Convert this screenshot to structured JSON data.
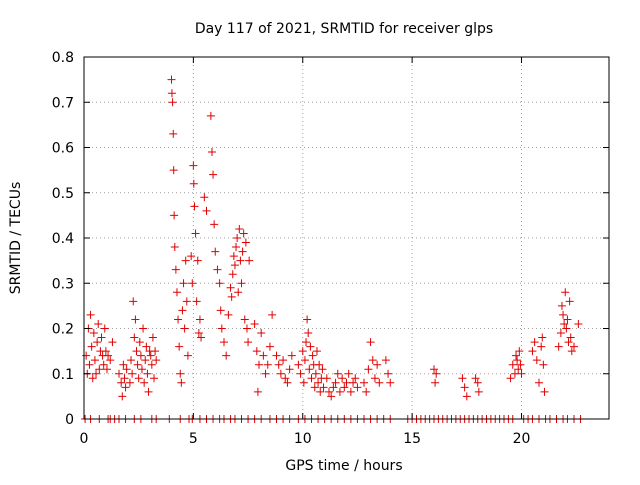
{
  "chart_data": {
    "type": "scatter",
    "title": "Day 117 of 2021, SRMTID for receiver glps",
    "xlabel": "GPS time / hours",
    "ylabel": "SRMTID / TECUs",
    "xlim": [
      0,
      24
    ],
    "ylim": [
      0,
      0.8
    ],
    "xticks": [
      0,
      5,
      10,
      15,
      20
    ],
    "xtick_labels": [
      "0",
      "5",
      "10",
      "15",
      "20"
    ],
    "yticks": [
      0,
      0.1,
      0.2,
      0.3,
      0.4,
      0.5,
      0.6,
      0.7,
      0.8
    ],
    "ytick_labels": [
      "0",
      "0.1",
      "0.2",
      "0.3",
      "0.4",
      "0.5",
      "0.6",
      "0.7",
      "0.8"
    ],
    "grid": true,
    "marker": "+",
    "color": "#e00000",
    "series": [
      {
        "name": "SRMTID",
        "points": [
          [
            0.1,
            0.14
          ],
          [
            0.15,
            0.1
          ],
          [
            0.2,
            0.2
          ],
          [
            0.25,
            0.12
          ],
          [
            0.3,
            0.23
          ],
          [
            0.35,
            0.16
          ],
          [
            0.4,
            0.09
          ],
          [
            0.45,
            0.19
          ],
          [
            0.5,
            0.13
          ],
          [
            0.55,
            0.1
          ],
          [
            0.6,
            0.17
          ],
          [
            0.65,
            0.21
          ],
          [
            0.7,
            0.11
          ],
          [
            0.75,
            0.15
          ],
          [
            0.8,
            0.18
          ],
          [
            0.85,
            0.14
          ],
          [
            0.9,
            0.12
          ],
          [
            0.95,
            0.2
          ],
          [
            1.0,
            0.15
          ],
          [
            1.05,
            0.11
          ],
          [
            1.1,
            0.14
          ],
          [
            1.2,
            0.13
          ],
          [
            1.3,
            0.17
          ],
          [
            1.6,
            0.1
          ],
          [
            1.7,
            0.08
          ],
          [
            1.75,
            0.05
          ],
          [
            1.8,
            0.12
          ],
          [
            1.85,
            0.09
          ],
          [
            1.9,
            0.07
          ],
          [
            1.95,
            0.11
          ],
          [
            2.1,
            0.08
          ],
          [
            2.15,
            0.13
          ],
          [
            2.2,
            0.1
          ],
          [
            2.25,
            0.26
          ],
          [
            2.3,
            0.18
          ],
          [
            2.35,
            0.22
          ],
          [
            2.4,
            0.15
          ],
          [
            2.45,
            0.12
          ],
          [
            2.5,
            0.09
          ],
          [
            2.55,
            0.17
          ],
          [
            2.6,
            0.14
          ],
          [
            2.65,
            0.11
          ],
          [
            2.7,
            0.2
          ],
          [
            2.75,
            0.08
          ],
          [
            2.8,
            0.13
          ],
          [
            2.85,
            0.16
          ],
          [
            2.9,
            0.1
          ],
          [
            2.95,
            0.06
          ],
          [
            3.0,
            0.15
          ],
          [
            3.05,
            0.14
          ],
          [
            3.1,
            0.12
          ],
          [
            3.15,
            0.18
          ],
          [
            3.2,
            0.09
          ],
          [
            3.25,
            0.15
          ],
          [
            3.3,
            0.13
          ],
          [
            4.0,
            0.75
          ],
          [
            4.02,
            0.72
          ],
          [
            4.05,
            0.7
          ],
          [
            4.08,
            0.63
          ],
          [
            4.1,
            0.55
          ],
          [
            4.12,
            0.45
          ],
          [
            4.15,
            0.38
          ],
          [
            4.2,
            0.33
          ],
          [
            4.25,
            0.28
          ],
          [
            4.3,
            0.22
          ],
          [
            4.35,
            0.16
          ],
          [
            4.4,
            0.1
          ],
          [
            4.45,
            0.08
          ],
          [
            4.5,
            0.24
          ],
          [
            4.55,
            0.3
          ],
          [
            4.6,
            0.2
          ],
          [
            4.65,
            0.35
          ],
          [
            4.7,
            0.26
          ],
          [
            4.75,
            0.14
          ],
          [
            4.9,
            0.36
          ],
          [
            4.95,
            0.3
          ],
          [
            5.0,
            0.56
          ],
          [
            5.02,
            0.52
          ],
          [
            5.05,
            0.47
          ],
          [
            5.1,
            0.41
          ],
          [
            5.15,
            0.26
          ],
          [
            5.2,
            0.35
          ],
          [
            5.25,
            0.19
          ],
          [
            5.3,
            0.22
          ],
          [
            5.35,
            0.18
          ],
          [
            5.5,
            0.49
          ],
          [
            5.6,
            0.46
          ],
          [
            5.8,
            0.67
          ],
          [
            5.85,
            0.59
          ],
          [
            5.9,
            0.54
          ],
          [
            5.95,
            0.43
          ],
          [
            6.0,
            0.37
          ],
          [
            6.1,
            0.33
          ],
          [
            6.2,
            0.3
          ],
          [
            6.25,
            0.24
          ],
          [
            6.3,
            0.2
          ],
          [
            6.4,
            0.17
          ],
          [
            6.5,
            0.14
          ],
          [
            6.6,
            0.23
          ],
          [
            6.7,
            0.29
          ],
          [
            6.75,
            0.27
          ],
          [
            6.8,
            0.32
          ],
          [
            6.85,
            0.36
          ],
          [
            6.9,
            0.34
          ],
          [
            6.95,
            0.38
          ],
          [
            7.0,
            0.4
          ],
          [
            7.05,
            0.28
          ],
          [
            7.1,
            0.42
          ],
          [
            7.15,
            0.35
          ],
          [
            7.2,
            0.3
          ],
          [
            7.25,
            0.37
          ],
          [
            7.3,
            0.41
          ],
          [
            7.35,
            0.22
          ],
          [
            7.4,
            0.39
          ],
          [
            7.45,
            0.2
          ],
          [
            7.5,
            0.17
          ],
          [
            7.55,
            0.35
          ],
          [
            7.8,
            0.21
          ],
          [
            7.9,
            0.15
          ],
          [
            7.95,
            0.06
          ],
          [
            8.0,
            0.12
          ],
          [
            8.1,
            0.19
          ],
          [
            8.2,
            0.14
          ],
          [
            8.3,
            0.1
          ],
          [
            8.4,
            0.12
          ],
          [
            8.5,
            0.16
          ],
          [
            8.6,
            0.23
          ],
          [
            8.8,
            0.14
          ],
          [
            8.9,
            0.12
          ],
          [
            9.0,
            0.1
          ],
          [
            9.1,
            0.13
          ],
          [
            9.2,
            0.09
          ],
          [
            9.3,
            0.08
          ],
          [
            9.4,
            0.11
          ],
          [
            9.5,
            0.14
          ],
          [
            9.8,
            0.12
          ],
          [
            9.9,
            0.1
          ],
          [
            10.0,
            0.15
          ],
          [
            10.05,
            0.08
          ],
          [
            10.1,
            0.13
          ],
          [
            10.15,
            0.17
          ],
          [
            10.2,
            0.22
          ],
          [
            10.25,
            0.19
          ],
          [
            10.3,
            0.11
          ],
          [
            10.35,
            0.16
          ],
          [
            10.4,
            0.09
          ],
          [
            10.45,
            0.14
          ],
          [
            10.5,
            0.12
          ],
          [
            10.55,
            0.07
          ],
          [
            10.6,
            0.1
          ],
          [
            10.65,
            0.15
          ],
          [
            10.7,
            0.08
          ],
          [
            10.75,
            0.12
          ],
          [
            10.8,
            0.06
          ],
          [
            10.85,
            0.09
          ],
          [
            10.9,
            0.11
          ],
          [
            10.95,
            0.07
          ],
          [
            11.1,
            0.09
          ],
          [
            11.2,
            0.06
          ],
          [
            11.3,
            0.05
          ],
          [
            11.4,
            0.07
          ],
          [
            11.5,
            0.08
          ],
          [
            11.6,
            0.1
          ],
          [
            11.7,
            0.06
          ],
          [
            11.8,
            0.09
          ],
          [
            11.9,
            0.07
          ],
          [
            12.0,
            0.08
          ],
          [
            12.1,
            0.1
          ],
          [
            12.2,
            0.06
          ],
          [
            12.3,
            0.08
          ],
          [
            12.4,
            0.09
          ],
          [
            12.5,
            0.07
          ],
          [
            12.8,
            0.08
          ],
          [
            12.9,
            0.06
          ],
          [
            13.0,
            0.11
          ],
          [
            13.1,
            0.17
          ],
          [
            13.2,
            0.13
          ],
          [
            13.3,
            0.09
          ],
          [
            13.4,
            0.12
          ],
          [
            13.5,
            0.08
          ],
          [
            13.8,
            0.13
          ],
          [
            13.9,
            0.1
          ],
          [
            14.0,
            0.08
          ],
          [
            16.0,
            0.11
          ],
          [
            16.05,
            0.08
          ],
          [
            16.1,
            0.1
          ],
          [
            17.3,
            0.09
          ],
          [
            17.4,
            0.07
          ],
          [
            17.5,
            0.05
          ],
          [
            17.9,
            0.09
          ],
          [
            18.0,
            0.08
          ],
          [
            18.05,
            0.06
          ],
          [
            19.5,
            0.09
          ],
          [
            19.6,
            0.12
          ],
          [
            19.7,
            0.1
          ],
          [
            19.75,
            0.14
          ],
          [
            19.8,
            0.13
          ],
          [
            19.85,
            0.11
          ],
          [
            19.9,
            0.15
          ],
          [
            19.95,
            0.12
          ],
          [
            20.0,
            0.1
          ],
          [
            20.5,
            0.15
          ],
          [
            20.6,
            0.17
          ],
          [
            20.7,
            0.13
          ],
          [
            20.8,
            0.08
          ],
          [
            20.9,
            0.16
          ],
          [
            20.95,
            0.18
          ],
          [
            21.0,
            0.12
          ],
          [
            21.05,
            0.06
          ],
          [
            21.7,
            0.16
          ],
          [
            21.8,
            0.19
          ],
          [
            21.85,
            0.25
          ],
          [
            21.9,
            0.23
          ],
          [
            21.95,
            0.21
          ],
          [
            22.0,
            0.28
          ],
          [
            22.05,
            0.2
          ],
          [
            22.1,
            0.22
          ],
          [
            22.15,
            0.17
          ],
          [
            22.2,
            0.26
          ],
          [
            22.25,
            0.18
          ],
          [
            22.3,
            0.15
          ],
          [
            22.4,
            0.16
          ],
          [
            22.6,
            0.21
          ]
        ],
        "zero_points": [
          0.05,
          0.3,
          0.7,
          1.1,
          1.2,
          1.4,
          1.6,
          1.9,
          2.3,
          2.6,
          3.1,
          3.3,
          3.9,
          4.4,
          4.8,
          4.95,
          5.3,
          5.6,
          5.9,
          6.2,
          6.4,
          6.7,
          6.9,
          7.2,
          7.5,
          7.8,
          8.1,
          8.5,
          8.8,
          9.1,
          9.4,
          9.8,
          10.1,
          10.4,
          10.7,
          11.0,
          11.3,
          11.6,
          11.9,
          12.2,
          12.5,
          12.8,
          13.1,
          13.4,
          13.7,
          14.0,
          14.8,
          15.0,
          15.2,
          15.4,
          15.6,
          15.8,
          16.0,
          16.2,
          16.4,
          16.6,
          16.8,
          17.0,
          17.2,
          17.4,
          17.6,
          17.8,
          18.0,
          18.2,
          18.4,
          18.6,
          18.8,
          19.0,
          19.2,
          19.4,
          19.6,
          20.1,
          20.3,
          20.5,
          20.8,
          21.1,
          21.3,
          21.6,
          21.9,
          22.1,
          22.4,
          22.7
        ]
      }
    ]
  }
}
